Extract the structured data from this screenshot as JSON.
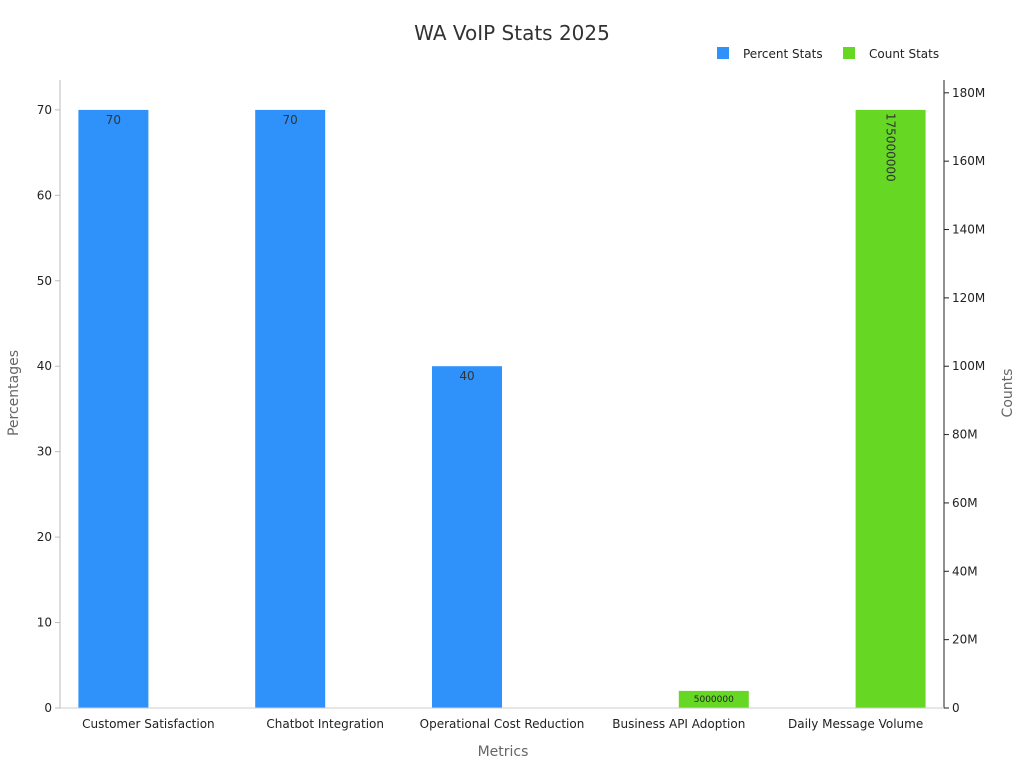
{
  "chart_data": {
    "type": "bar",
    "title": "WA VoIP Stats 2025",
    "xlabel": "Metrics",
    "ylabel": "Percentages",
    "ylabel_right": "Counts",
    "categories": [
      "Customer Satisfaction",
      "Chatbot Integration",
      "Operational Cost Reduction",
      "Business API Adoption",
      "Daily Message Volume"
    ],
    "series": [
      {
        "name": "Percent Stats",
        "axis": "left",
        "color": "#2f92fa",
        "values": [
          70,
          70,
          40,
          null,
          null
        ],
        "labels": [
          "70",
          "70",
          "40",
          null,
          null
        ]
      },
      {
        "name": "Count Stats",
        "axis": "right",
        "color": "#66d823",
        "values": [
          null,
          null,
          null,
          5000000,
          175000000
        ],
        "labels": [
          null,
          null,
          null,
          "5000000",
          "175000000"
        ]
      }
    ],
    "ylim": [
      0,
      73.5
    ],
    "ylim_right": [
      0,
      183750000
    ],
    "yticks": [
      "0",
      "10",
      "20",
      "30",
      "40",
      "50",
      "60",
      "70"
    ],
    "yticks_right": [
      "0",
      "20M",
      "40M",
      "60M",
      "80M",
      "100M",
      "120M",
      "140M",
      "160M",
      "180M"
    ],
    "legend": "top-right",
    "grid": false
  }
}
